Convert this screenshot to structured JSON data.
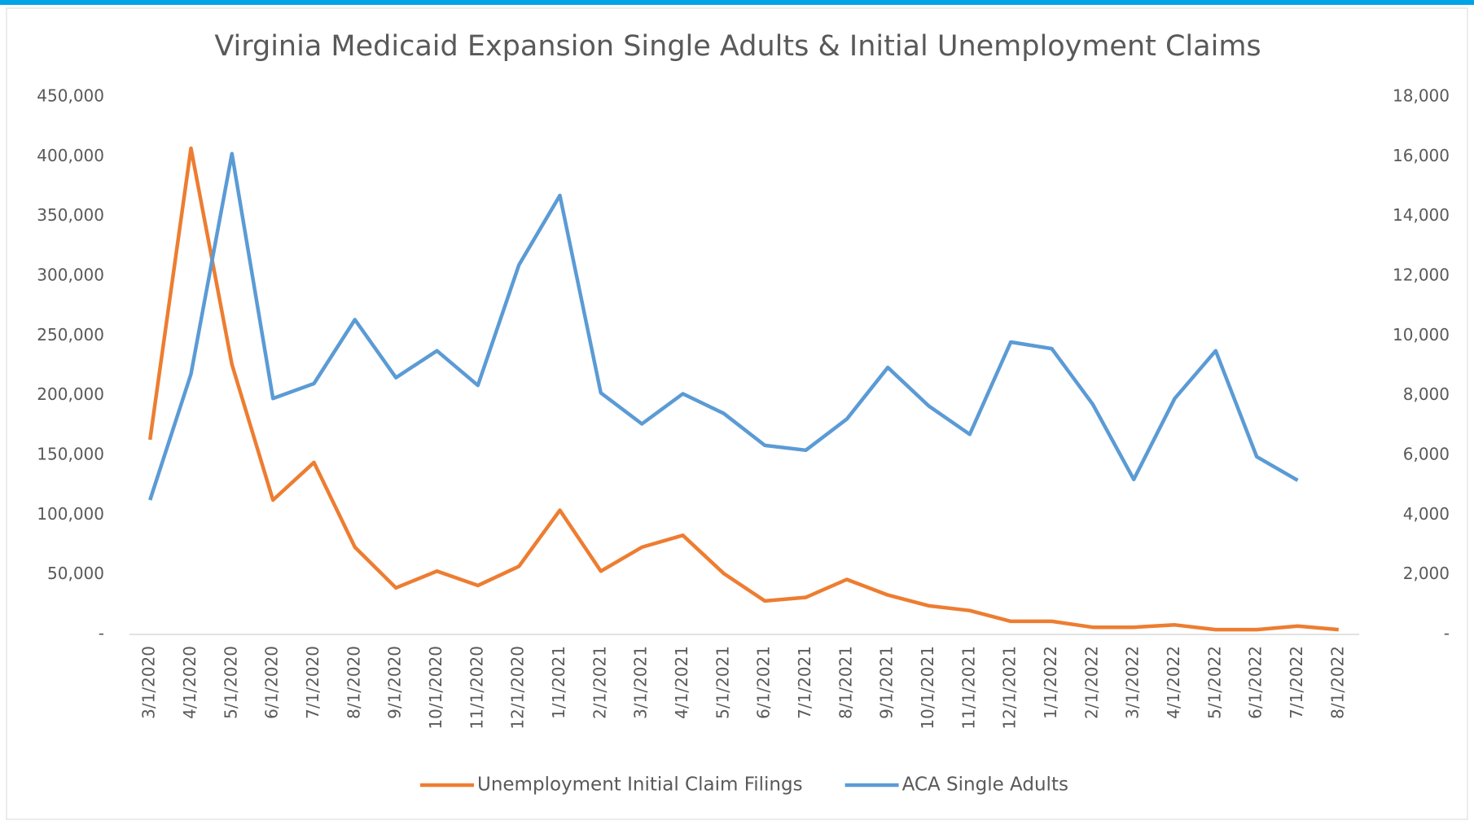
{
  "chart_data": {
    "type": "line",
    "title": "Virginia Medicaid Expansion Single Adults & Initial Unemployment Claims",
    "categories": [
      "3/1/2020",
      "4/1/2020",
      "5/1/2020",
      "6/1/2020",
      "7/1/2020",
      "8/1/2020",
      "9/1/2020",
      "10/1/2020",
      "11/1/2020",
      "12/1/2020",
      "1/1/2021",
      "2/1/2021",
      "3/1/2021",
      "4/1/2021",
      "5/1/2021",
      "6/1/2021",
      "7/1/2021",
      "8/1/2021",
      "9/1/2021",
      "10/1/2021",
      "11/1/2021",
      "12/1/2021",
      "1/1/2022",
      "2/1/2022",
      "3/1/2022",
      "4/1/2022",
      "5/1/2022",
      "6/1/2022",
      "7/1/2022",
      "8/1/2022"
    ],
    "series": [
      {
        "name": "Unemployment Initial Claim Filings",
        "color": "#ed7d31",
        "axis": "y",
        "values": [
          163000,
          407000,
          226000,
          112500,
          144000,
          73000,
          39000,
          53000,
          41000,
          57000,
          104000,
          53000,
          73000,
          83000,
          51000,
          28000,
          31000,
          46000,
          33000,
          24000,
          20000,
          11000,
          11000,
          6000,
          6000,
          8000,
          4000,
          4000,
          7000,
          4000
        ]
      },
      {
        "name": "ACA Single Adults",
        "color": "#5b9bd5",
        "axis": "y2",
        "values": [
          4500,
          8720,
          16100,
          7900,
          8400,
          10540,
          8600,
          9500,
          8340,
          12370,
          14700,
          8090,
          7050,
          8060,
          7400,
          6330,
          6170,
          7210,
          8940,
          7650,
          6700,
          9790,
          9570,
          7710,
          5190,
          7900,
          9500,
          5950,
          5160,
          null
        ]
      }
    ],
    "ylim": [
      0,
      450000
    ],
    "yticks": [
      {
        "value": 0,
        "label": "-"
      },
      {
        "value": 50000,
        "label": "50,000"
      },
      {
        "value": 100000,
        "label": "100,000"
      },
      {
        "value": 150000,
        "label": "150,000"
      },
      {
        "value": 200000,
        "label": "200,000"
      },
      {
        "value": 250000,
        "label": "250,000"
      },
      {
        "value": 300000,
        "label": "300,000"
      },
      {
        "value": 350000,
        "label": "350,000"
      },
      {
        "value": 400000,
        "label": "400,000"
      },
      {
        "value": 450000,
        "label": "450,000"
      }
    ],
    "y2lim": [
      0,
      18000
    ],
    "y2ticks": [
      {
        "value": 0,
        "label": "-"
      },
      {
        "value": 2000,
        "label": "2,000"
      },
      {
        "value": 4000,
        "label": "4,000"
      },
      {
        "value": 6000,
        "label": "6,000"
      },
      {
        "value": 8000,
        "label": "8,000"
      },
      {
        "value": 10000,
        "label": "10,000"
      },
      {
        "value": 12000,
        "label": "12,000"
      },
      {
        "value": 14000,
        "label": "14,000"
      },
      {
        "value": 16000,
        "label": "16,000"
      },
      {
        "value": 18000,
        "label": "18,000"
      }
    ],
    "grid": false,
    "legend": "bottom"
  }
}
